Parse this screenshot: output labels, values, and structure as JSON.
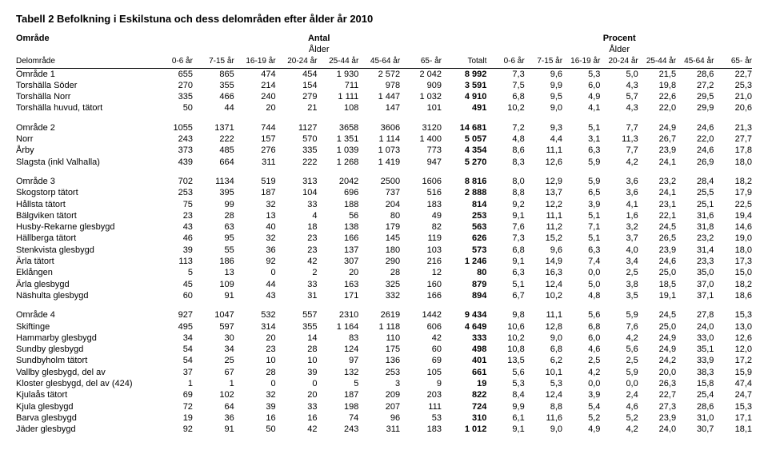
{
  "title": "Tabell 2 Befolkning i Eskilstuna och dess delområden efter ålder år 2010",
  "header": {
    "col1_row1": "Område",
    "col1_row3": "Delområde",
    "antal": "Antal",
    "procent": "Procent",
    "alder": "Ålder",
    "ages": [
      "0-6 år",
      "7-15 år",
      "16-19 år",
      "20-24 år",
      "25-44 år",
      "45-64 år",
      "65- år"
    ],
    "totalt": "Totalt"
  },
  "groups": [
    {
      "rows": [
        {
          "label": "Område 1",
          "n": [
            "655",
            "865",
            "474",
            "454",
            "1 930",
            "2 572",
            "2 042"
          ],
          "tot": "8 992",
          "p": [
            "7,3",
            "9,6",
            "5,3",
            "5,0",
            "21,5",
            "28,6",
            "22,7"
          ]
        },
        {
          "label": "Torshälla Söder",
          "n": [
            "270",
            "355",
            "214",
            "154",
            "711",
            "978",
            "909"
          ],
          "tot": "3 591",
          "p": [
            "7,5",
            "9,9",
            "6,0",
            "4,3",
            "19,8",
            "27,2",
            "25,3"
          ]
        },
        {
          "label": "Torshälla Norr",
          "n": [
            "335",
            "466",
            "240",
            "279",
            "1 111",
            "1 447",
            "1 032"
          ],
          "tot": "4 910",
          "p": [
            "6,8",
            "9,5",
            "4,9",
            "5,7",
            "22,6",
            "29,5",
            "21,0"
          ]
        },
        {
          "label": "Torshälla huvud, tätort",
          "n": [
            "50",
            "44",
            "20",
            "21",
            "108",
            "147",
            "101"
          ],
          "tot": "491",
          "p": [
            "10,2",
            "9,0",
            "4,1",
            "4,3",
            "22,0",
            "29,9",
            "20,6"
          ]
        }
      ]
    },
    {
      "rows": [
        {
          "label": "Område 2",
          "n": [
            "1055",
            "1371",
            "744",
            "1127",
            "3658",
            "3606",
            "3120"
          ],
          "tot": "14 681",
          "p": [
            "7,2",
            "9,3",
            "5,1",
            "7,7",
            "24,9",
            "24,6",
            "21,3"
          ]
        },
        {
          "label": "Norr",
          "n": [
            "243",
            "222",
            "157",
            "570",
            "1 351",
            "1 114",
            "1 400"
          ],
          "tot": "5 057",
          "p": [
            "4,8",
            "4,4",
            "3,1",
            "11,3",
            "26,7",
            "22,0",
            "27,7"
          ]
        },
        {
          "label": "Årby",
          "n": [
            "373",
            "485",
            "276",
            "335",
            "1 039",
            "1 073",
            "773"
          ],
          "tot": "4 354",
          "p": [
            "8,6",
            "11,1",
            "6,3",
            "7,7",
            "23,9",
            "24,6",
            "17,8"
          ]
        },
        {
          "label": "Slagsta (inkl Valhalla)",
          "n": [
            "439",
            "664",
            "311",
            "222",
            "1 268",
            "1 419",
            "947"
          ],
          "tot": "5 270",
          "p": [
            "8,3",
            "12,6",
            "5,9",
            "4,2",
            "24,1",
            "26,9",
            "18,0"
          ]
        }
      ]
    },
    {
      "rows": [
        {
          "label": "Område 3",
          "n": [
            "702",
            "1134",
            "519",
            "313",
            "2042",
            "2500",
            "1606"
          ],
          "tot": "8 816",
          "p": [
            "8,0",
            "12,9",
            "5,9",
            "3,6",
            "23,2",
            "28,4",
            "18,2"
          ]
        },
        {
          "label": "Skogstorp tätort",
          "n": [
            "253",
            "395",
            "187",
            "104",
            "696",
            "737",
            "516"
          ],
          "tot": "2 888",
          "p": [
            "8,8",
            "13,7",
            "6,5",
            "3,6",
            "24,1",
            "25,5",
            "17,9"
          ]
        },
        {
          "label": "Hållsta tätort",
          "n": [
            "75",
            "99",
            "32",
            "33",
            "188",
            "204",
            "183"
          ],
          "tot": "814",
          "p": [
            "9,2",
            "12,2",
            "3,9",
            "4,1",
            "23,1",
            "25,1",
            "22,5"
          ]
        },
        {
          "label": "Bälgviken tätort",
          "n": [
            "23",
            "28",
            "13",
            "4",
            "56",
            "80",
            "49"
          ],
          "tot": "253",
          "p": [
            "9,1",
            "11,1",
            "5,1",
            "1,6",
            "22,1",
            "31,6",
            "19,4"
          ]
        },
        {
          "label": "Husby-Rekarne glesbygd",
          "n": [
            "43",
            "63",
            "40",
            "18",
            "138",
            "179",
            "82"
          ],
          "tot": "563",
          "p": [
            "7,6",
            "11,2",
            "7,1",
            "3,2",
            "24,5",
            "31,8",
            "14,6"
          ]
        },
        {
          "label": "Hällberga tätort",
          "n": [
            "46",
            "95",
            "32",
            "23",
            "166",
            "145",
            "119"
          ],
          "tot": "626",
          "p": [
            "7,3",
            "15,2",
            "5,1",
            "3,7",
            "26,5",
            "23,2",
            "19,0"
          ]
        },
        {
          "label": "Stenkvista glesbygd",
          "n": [
            "39",
            "55",
            "36",
            "23",
            "137",
            "180",
            "103"
          ],
          "tot": "573",
          "p": [
            "6,8",
            "9,6",
            "6,3",
            "4,0",
            "23,9",
            "31,4",
            "18,0"
          ]
        },
        {
          "label": "Ärla tätort",
          "n": [
            "113",
            "186",
            "92",
            "42",
            "307",
            "290",
            "216"
          ],
          "tot": "1 246",
          "p": [
            "9,1",
            "14,9",
            "7,4",
            "3,4",
            "24,6",
            "23,3",
            "17,3"
          ]
        },
        {
          "label": "Eklången",
          "n": [
            "5",
            "13",
            "0",
            "2",
            "20",
            "28",
            "12"
          ],
          "tot": "80",
          "p": [
            "6,3",
            "16,3",
            "0,0",
            "2,5",
            "25,0",
            "35,0",
            "15,0"
          ]
        },
        {
          "label": "Ärla glesbygd",
          "n": [
            "45",
            "109",
            "44",
            "33",
            "163",
            "325",
            "160"
          ],
          "tot": "879",
          "p": [
            "5,1",
            "12,4",
            "5,0",
            "3,8",
            "18,5",
            "37,0",
            "18,2"
          ]
        },
        {
          "label": "Näshulta glesbygd",
          "n": [
            "60",
            "91",
            "43",
            "31",
            "171",
            "332",
            "166"
          ],
          "tot": "894",
          "p": [
            "6,7",
            "10,2",
            "4,8",
            "3,5",
            "19,1",
            "37,1",
            "18,6"
          ]
        }
      ]
    },
    {
      "rows": [
        {
          "label": "Område 4",
          "n": [
            "927",
            "1047",
            "532",
            "557",
            "2310",
            "2619",
            "1442"
          ],
          "tot": "9 434",
          "p": [
            "9,8",
            "11,1",
            "5,6",
            "5,9",
            "24,5",
            "27,8",
            "15,3"
          ]
        },
        {
          "label": "Skiftinge",
          "n": [
            "495",
            "597",
            "314",
            "355",
            "1 164",
            "1 118",
            "606"
          ],
          "tot": "4 649",
          "p": [
            "10,6",
            "12,8",
            "6,8",
            "7,6",
            "25,0",
            "24,0",
            "13,0"
          ]
        },
        {
          "label": "Hammarby glesbygd",
          "n": [
            "34",
            "30",
            "20",
            "14",
            "83",
            "110",
            "42"
          ],
          "tot": "333",
          "p": [
            "10,2",
            "9,0",
            "6,0",
            "4,2",
            "24,9",
            "33,0",
            "12,6"
          ]
        },
        {
          "label": "Sundby glesbygd",
          "n": [
            "54",
            "34",
            "23",
            "28",
            "124",
            "175",
            "60"
          ],
          "tot": "498",
          "p": [
            "10,8",
            "6,8",
            "4,6",
            "5,6",
            "24,9",
            "35,1",
            "12,0"
          ]
        },
        {
          "label": "Sundbyholm tätort",
          "n": [
            "54",
            "25",
            "10",
            "10",
            "97",
            "136",
            "69"
          ],
          "tot": "401",
          "p": [
            "13,5",
            "6,2",
            "2,5",
            "2,5",
            "24,2",
            "33,9",
            "17,2"
          ]
        },
        {
          "label": "Vallby glesbygd, del av",
          "n": [
            "37",
            "67",
            "28",
            "39",
            "132",
            "253",
            "105"
          ],
          "tot": "661",
          "p": [
            "5,6",
            "10,1",
            "4,2",
            "5,9",
            "20,0",
            "38,3",
            "15,9"
          ]
        },
        {
          "label": "Kloster glesbygd, del av (424)",
          "n": [
            "1",
            "1",
            "0",
            "0",
            "5",
            "3",
            "9"
          ],
          "tot": "19",
          "p": [
            "5,3",
            "5,3",
            "0,0",
            "0,0",
            "26,3",
            "15,8",
            "47,4"
          ]
        },
        {
          "label": "Kjulaås tätort",
          "n": [
            "69",
            "102",
            "32",
            "20",
            "187",
            "209",
            "203"
          ],
          "tot": "822",
          "p": [
            "8,4",
            "12,4",
            "3,9",
            "2,4",
            "22,7",
            "25,4",
            "24,7"
          ]
        },
        {
          "label": "Kjula glesbygd",
          "n": [
            "72",
            "64",
            "39",
            "33",
            "198",
            "207",
            "111"
          ],
          "tot": "724",
          "p": [
            "9,9",
            "8,8",
            "5,4",
            "4,6",
            "27,3",
            "28,6",
            "15,3"
          ]
        },
        {
          "label": "Barva glesbygd",
          "n": [
            "19",
            "36",
            "16",
            "16",
            "74",
            "96",
            "53"
          ],
          "tot": "310",
          "p": [
            "6,1",
            "11,6",
            "5,2",
            "5,2",
            "23,9",
            "31,0",
            "17,1"
          ]
        },
        {
          "label": "Jäder glesbygd",
          "n": [
            "92",
            "91",
            "50",
            "42",
            "243",
            "311",
            "183"
          ],
          "tot": "1 012",
          "p": [
            "9,1",
            "9,0",
            "4,9",
            "4,2",
            "24,0",
            "30,7",
            "18,1"
          ]
        }
      ]
    }
  ]
}
